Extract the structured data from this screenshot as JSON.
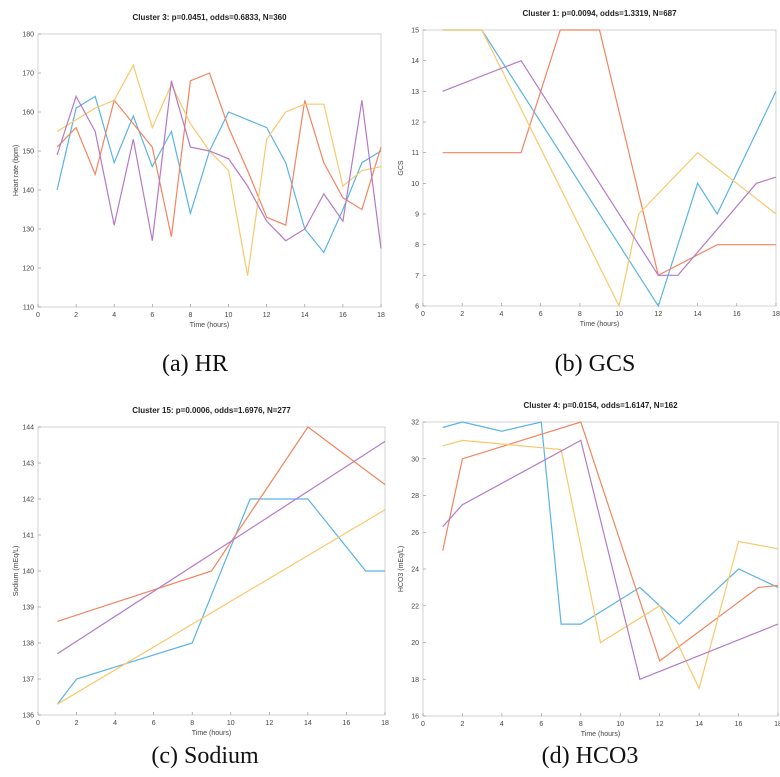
{
  "chart_data": [
    {
      "type": "line",
      "title": "Cluster 3: p=0.0451, odds=0.6833, N=360",
      "xlabel": "Time (hours)",
      "ylabel": "Heart rate (bpm)",
      "caption": "(a)  HR",
      "xlim": [
        0,
        18
      ],
      "ylim": [
        110,
        180
      ],
      "xticks": [
        0,
        2,
        4,
        6,
        8,
        10,
        12,
        14,
        16,
        18
      ],
      "yticks": [
        110,
        120,
        130,
        140,
        150,
        160,
        170,
        180
      ],
      "grid": false,
      "series": [
        {
          "color": "#5ab4e5",
          "x": [
            1,
            2,
            3,
            4,
            5,
            6,
            7,
            8,
            9,
            10,
            11,
            12,
            13,
            14,
            15,
            16,
            17,
            18
          ],
          "y": [
            140,
            161,
            164,
            147,
            159,
            146,
            155,
            134,
            150,
            160,
            158,
            156,
            147,
            130,
            124,
            135,
            147,
            150
          ]
        },
        {
          "color": "#f4845f",
          "x": [
            1,
            2,
            3,
            4,
            5,
            6,
            7,
            8,
            9,
            10,
            11,
            12,
            13,
            14,
            15,
            16,
            17,
            18
          ],
          "y": [
            151,
            156,
            144,
            163,
            157,
            151,
            128,
            168,
            170,
            156,
            145,
            133,
            131,
            163,
            147,
            138,
            135,
            151
          ]
        },
        {
          "color": "#f9c86b",
          "x": [
            1,
            2,
            3,
            4,
            5,
            6,
            7,
            8,
            9,
            10,
            11,
            12,
            13,
            14,
            15,
            16,
            17,
            18
          ],
          "y": [
            155,
            158,
            161,
            163,
            172,
            156,
            167,
            157,
            150,
            145,
            118,
            153,
            160,
            162,
            162,
            141,
            145,
            146
          ]
        },
        {
          "color": "#b57ac7",
          "x": [
            1,
            2,
            3,
            4,
            5,
            6,
            7,
            8,
            9,
            10,
            11,
            12,
            13,
            14,
            15,
            16,
            17,
            18
          ],
          "y": [
            149,
            164,
            155,
            131,
            153,
            127,
            168,
            151,
            150,
            148,
            141,
            132,
            127,
            130,
            139,
            132,
            163,
            125
          ]
        }
      ]
    },
    {
      "type": "line",
      "title": "Cluster 1: p=0.0094, odds=1.3319, N=687",
      "xlabel": "Time (hours)",
      "ylabel": "GCS",
      "caption": "(b)  GCS",
      "xlim": [
        0,
        18
      ],
      "ylim": [
        6,
        15
      ],
      "xticks": [
        0,
        2,
        4,
        6,
        8,
        10,
        12,
        14,
        16,
        18
      ],
      "yticks": [
        6,
        7,
        8,
        9,
        10,
        11,
        12,
        13,
        14,
        15
      ],
      "grid": false,
      "series": [
        {
          "color": "#5ab4e5",
          "x": [
            1,
            3,
            12,
            14,
            15,
            18
          ],
          "y": [
            15,
            15,
            6,
            10,
            9,
            13
          ]
        },
        {
          "color": "#f4845f",
          "x": [
            1,
            5,
            7,
            9,
            12,
            15,
            18
          ],
          "y": [
            11,
            11,
            15,
            15,
            7,
            8,
            8
          ]
        },
        {
          "color": "#f9c86b",
          "x": [
            1,
            3,
            10,
            11,
            14,
            18
          ],
          "y": [
            15,
            15,
            6,
            9,
            11,
            9
          ]
        },
        {
          "color": "#b57ac7",
          "x": [
            1,
            5,
            12,
            13,
            17,
            18
          ],
          "y": [
            13,
            14,
            7,
            7,
            10,
            10.2
          ]
        }
      ]
    },
    {
      "type": "line",
      "title": "Cluster 15: p=0.0006, odds=1.6976, N=277",
      "xlabel": "Time (hours)",
      "ylabel": "Sodium (mEq/L)",
      "caption": "(c)  Sodium",
      "xlim": [
        0,
        18
      ],
      "ylim": [
        136,
        144
      ],
      "xticks": [
        0,
        2,
        4,
        6,
        8,
        10,
        12,
        14,
        16,
        18
      ],
      "yticks": [
        136,
        137,
        138,
        139,
        140,
        141,
        142,
        143,
        144
      ],
      "grid": false,
      "series": [
        {
          "color": "#5ab4e5",
          "x": [
            1,
            2,
            8,
            11,
            14,
            17,
            18
          ],
          "y": [
            136.3,
            137,
            138,
            142,
            142,
            140,
            140
          ]
        },
        {
          "color": "#f4845f",
          "x": [
            1,
            9,
            14,
            18
          ],
          "y": [
            138.6,
            140,
            144,
            142.4
          ]
        },
        {
          "color": "#f9c86b",
          "x": [
            1,
            18
          ],
          "y": [
            136.3,
            141.7
          ]
        },
        {
          "color": "#b57ac7",
          "x": [
            1,
            18
          ],
          "y": [
            137.7,
            143.6
          ]
        }
      ]
    },
    {
      "type": "line",
      "title": "Cluster 4: p=0.0154, odds=1.6147, N=162",
      "xlabel": "Time (hours)",
      "ylabel": "HCO3 (mEq/L)",
      "caption": "(d)  HCO3",
      "xlim": [
        0,
        18
      ],
      "ylim": [
        16,
        32
      ],
      "xticks": [
        0,
        2,
        4,
        6,
        8,
        10,
        12,
        14,
        16,
        18
      ],
      "yticks": [
        16,
        18,
        20,
        22,
        24,
        26,
        28,
        30,
        32
      ],
      "grid": false,
      "series": [
        {
          "color": "#5ab4e5",
          "x": [
            1,
            2,
            4,
            6,
            7,
            8,
            11,
            13,
            16,
            18
          ],
          "y": [
            31.7,
            32,
            31.5,
            32,
            21,
            21,
            23,
            21,
            24,
            23
          ]
        },
        {
          "color": "#f4845f",
          "x": [
            1,
            2,
            8,
            12,
            17,
            18
          ],
          "y": [
            25,
            30,
            32,
            19,
            23,
            23.1
          ]
        },
        {
          "color": "#f9c86b",
          "x": [
            1,
            2,
            6,
            7,
            9,
            12,
            14,
            16,
            18
          ],
          "y": [
            30.7,
            31,
            30.6,
            30.5,
            20,
            22,
            17.5,
            25.5,
            25.1
          ]
        },
        {
          "color": "#b57ac7",
          "x": [
            1,
            2,
            8,
            11,
            18
          ],
          "y": [
            26.3,
            27.5,
            31,
            18,
            21
          ]
        }
      ]
    }
  ]
}
